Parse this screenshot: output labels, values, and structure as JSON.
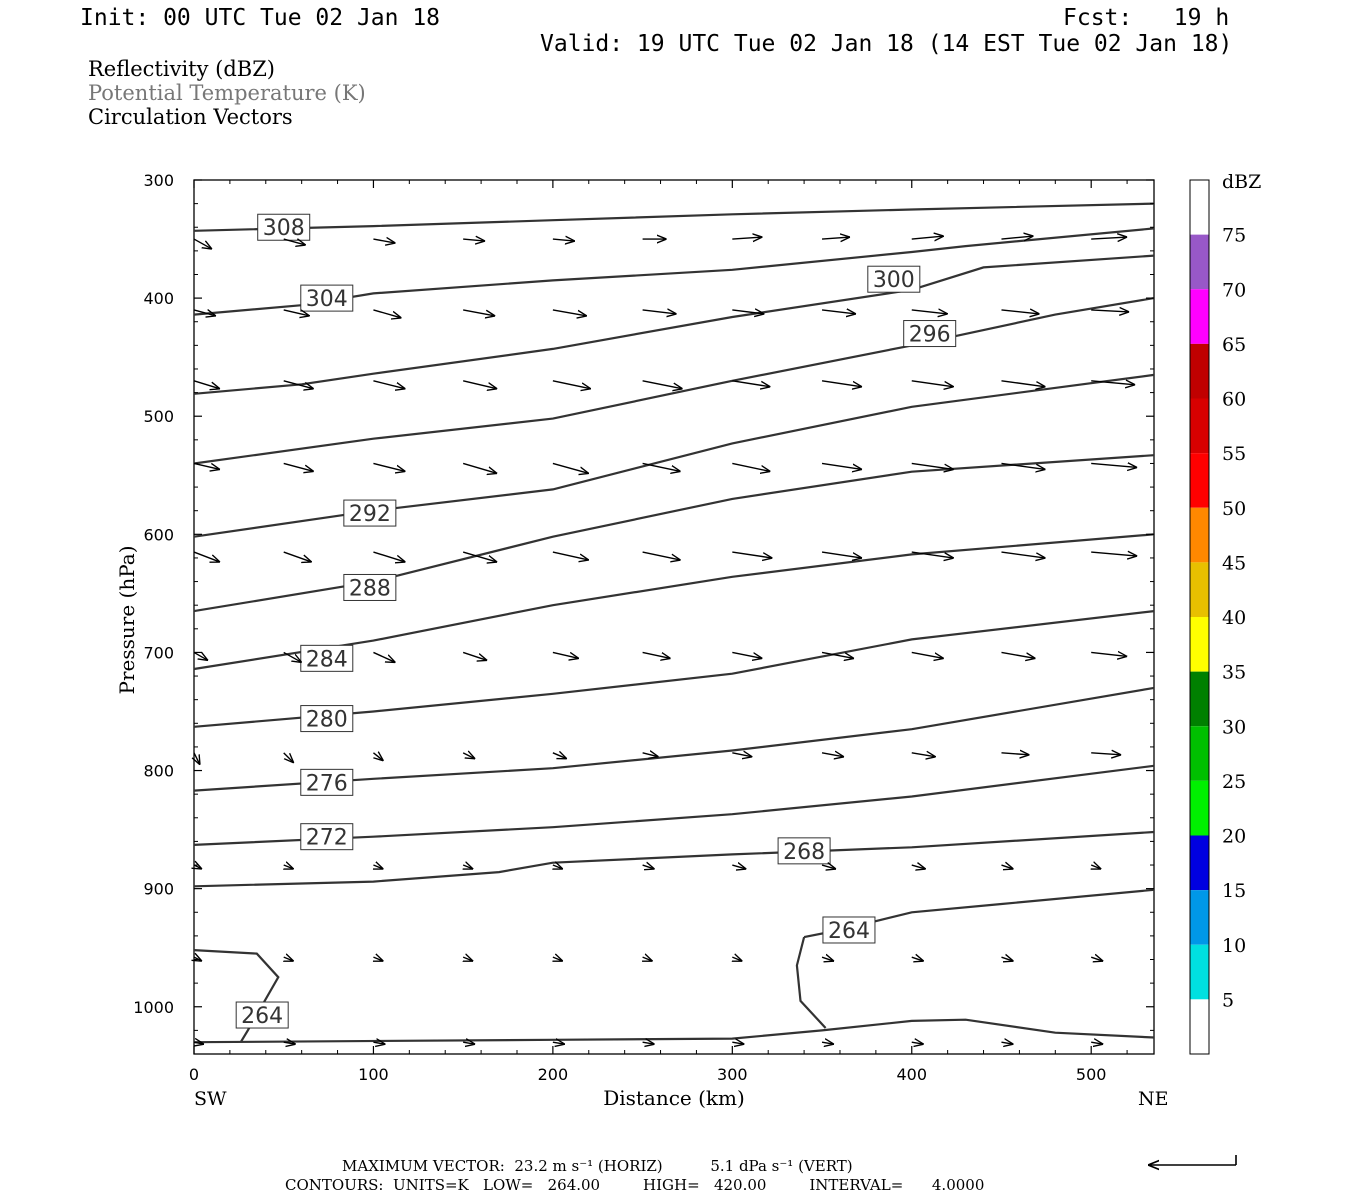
{
  "header": {
    "init": "Init: 00 UTC Tue 02 Jan 18",
    "fcst": "Fcst:   19 h",
    "valid": "Valid: 19 UTC Tue 02 Jan 18 (14 EST Tue 02 Jan 18)"
  },
  "fields": {
    "reflectivity": "Reflectivity (dBZ)",
    "theta": "Potential Temperature (K)",
    "vectors": "Circulation Vectors"
  },
  "footer": {
    "max_vector": "MAXIMUM VECTOR:  23.2 m s⁻¹ (HORIZ)          5.1 dPa s⁻¹ (VERT)",
    "contours": "CONTOURS:  UNITS=K   LOW=   264.00         HIGH=   420.00         INTERVAL=      4.0000"
  },
  "chart_data": {
    "type": "cross-section",
    "xlabel": "Distance (km)",
    "ylabel": "Pressure (hPa)",
    "xlim": [
      0,
      535
    ],
    "ylim": [
      1040,
      300
    ],
    "x_ticks": [
      0,
      100,
      200,
      300,
      400,
      500
    ],
    "y_ticks": [
      300,
      400,
      500,
      600,
      700,
      800,
      900,
      1000
    ],
    "x_end_labels": {
      "left": "SW",
      "right": "NE"
    },
    "colorbar": {
      "unit": "dBZ",
      "ticks": [
        5,
        10,
        15,
        20,
        25,
        30,
        35,
        40,
        45,
        50,
        55,
        60,
        65,
        70,
        75
      ],
      "colors": [
        "#00e0e0",
        "#0098e8",
        "#0000e0",
        "#00f000",
        "#00c000",
        "#008000",
        "#ffff00",
        "#e8c000",
        "#ff8800",
        "#ff0000",
        "#d80000",
        "#c00000",
        "#ff00ff",
        "#9858c8"
      ]
    },
    "theta_contours": [
      {
        "level": 308,
        "label_at": [
          50,
          340
        ],
        "points": [
          [
            0,
            343
          ],
          [
            100,
            339
          ],
          [
            200,
            334
          ],
          [
            300,
            329
          ],
          [
            400,
            325
          ],
          [
            535,
            320
          ]
        ]
      },
      {
        "level": 304,
        "label_at": [
          74,
          400
        ],
        "points": [
          [
            0,
            414
          ],
          [
            60,
            406
          ],
          [
            100,
            396
          ],
          [
            200,
            385
          ],
          [
            300,
            376
          ],
          [
            400,
            361
          ],
          [
            430,
            356
          ],
          [
            535,
            341
          ]
        ]
      },
      {
        "level": 300,
        "label_at": [
          390,
          384
        ],
        "points": [
          [
            0,
            481
          ],
          [
            60,
            473
          ],
          [
            100,
            464
          ],
          [
            200,
            443
          ],
          [
            300,
            416
          ],
          [
            400,
            393
          ],
          [
            440,
            374
          ],
          [
            535,
            364
          ]
        ]
      },
      {
        "level": 296,
        "label_at": [
          410,
          430
        ],
        "points": [
          [
            0,
            540
          ],
          [
            100,
            519
          ],
          [
            200,
            502
          ],
          [
            300,
            470
          ],
          [
            400,
            440
          ],
          [
            480,
            414
          ],
          [
            535,
            400
          ]
        ]
      },
      {
        "level": 292,
        "label_at": [
          98,
          582
        ],
        "points": [
          [
            0,
            602
          ],
          [
            100,
            580
          ],
          [
            200,
            562
          ],
          [
            300,
            523
          ],
          [
            400,
            492
          ],
          [
            535,
            465
          ]
        ]
      },
      {
        "level": 288,
        "label_at": [
          98,
          645
        ],
        "points": [
          [
            0,
            665
          ],
          [
            100,
            640
          ],
          [
            200,
            602
          ],
          [
            300,
            570
          ],
          [
            400,
            547
          ],
          [
            535,
            533
          ]
        ]
      },
      {
        "level": 284,
        "label_at": [
          74,
          705
        ],
        "points": [
          [
            0,
            714
          ],
          [
            100,
            690
          ],
          [
            200,
            660
          ],
          [
            300,
            636
          ],
          [
            400,
            617
          ],
          [
            535,
            600
          ]
        ]
      },
      {
        "level": 280,
        "label_at": [
          74,
          756
        ],
        "points": [
          [
            0,
            763
          ],
          [
            100,
            750
          ],
          [
            200,
            735
          ],
          [
            300,
            718
          ],
          [
            400,
            689
          ],
          [
            535,
            665
          ]
        ]
      },
      {
        "level": 276,
        "label_at": [
          74,
          810
        ],
        "points": [
          [
            0,
            817
          ],
          [
            100,
            807
          ],
          [
            200,
            798
          ],
          [
            300,
            783
          ],
          [
            400,
            765
          ],
          [
            535,
            730
          ]
        ]
      },
      {
        "level": 272,
        "label_at": [
          74,
          856
        ],
        "points": [
          [
            0,
            863
          ],
          [
            100,
            856
          ],
          [
            200,
            848
          ],
          [
            300,
            837
          ],
          [
            400,
            822
          ],
          [
            535,
            796
          ]
        ]
      },
      {
        "level": 268,
        "label_at": [
          340,
          868
        ],
        "points": [
          [
            0,
            898
          ],
          [
            100,
            894
          ],
          [
            170,
            886
          ],
          [
            200,
            878
          ],
          [
            300,
            871
          ],
          [
            400,
            865
          ],
          [
            535,
            852
          ]
        ]
      },
      {
        "level": 264,
        "label_at": [
          365,
          935
        ],
        "points": [
          [
            340,
            941
          ],
          [
            360,
            935
          ],
          [
            400,
            920
          ],
          [
            450,
            913
          ],
          [
            535,
            901
          ]
        ]
      }
    ],
    "vectors": [
      {
        "p": 350,
        "dx": [
          18,
          22,
          22,
          22,
          22,
          24,
          30,
          28,
          32,
          32,
          36
        ],
        "dy": [
          10,
          6,
          4,
          2,
          2,
          0,
          -2,
          -2,
          -3,
          -3,
          -2
        ]
      },
      {
        "p": 410,
        "dx": [
          22,
          26,
          28,
          32,
          34,
          34,
          32,
          34,
          36,
          38,
          38
        ],
        "dy": [
          6,
          6,
          8,
          6,
          6,
          4,
          4,
          4,
          4,
          4,
          2
        ]
      },
      {
        "p": 470,
        "dx": [
          26,
          30,
          32,
          34,
          38,
          40,
          38,
          40,
          42,
          44,
          44
        ],
        "dy": [
          8,
          8,
          8,
          8,
          8,
          8,
          6,
          6,
          6,
          6,
          4
        ]
      },
      {
        "p": 540,
        "dx": [
          26,
          30,
          32,
          34,
          36,
          38,
          38,
          40,
          42,
          44,
          46
        ],
        "dy": [
          6,
          8,
          8,
          10,
          10,
          8,
          8,
          6,
          6,
          6,
          4
        ]
      },
      {
        "p": 615,
        "dx": [
          26,
          28,
          32,
          34,
          36,
          38,
          40,
          40,
          42,
          44,
          46
        ],
        "dy": [
          10,
          10,
          10,
          10,
          8,
          8,
          6,
          6,
          6,
          6,
          4
        ]
      },
      {
        "p": 700,
        "dx": [
          14,
          18,
          22,
          24,
          26,
          28,
          30,
          32,
          32,
          34,
          36
        ],
        "dy": [
          8,
          10,
          10,
          8,
          6,
          6,
          6,
          6,
          6,
          6,
          4
        ]
      },
      {
        "p": 785,
        "dx": [
          6,
          10,
          10,
          12,
          14,
          16,
          20,
          22,
          24,
          28,
          30
        ],
        "dy": [
          12,
          10,
          8,
          6,
          6,
          4,
          4,
          4,
          4,
          2,
          2
        ]
      },
      {
        "p": 880,
        "dx": [
          8,
          10,
          10,
          10,
          10,
          12,
          14,
          14,
          14,
          12,
          10
        ],
        "dy": [
          4,
          4,
          4,
          4,
          4,
          4,
          4,
          4,
          4,
          4,
          4
        ]
      },
      {
        "p": 958,
        "dx": [
          8,
          10,
          10,
          10,
          10,
          10,
          10,
          12,
          12,
          12,
          12
        ],
        "dy": [
          4,
          4,
          4,
          4,
          4,
          4,
          4,
          4,
          4,
          4,
          4
        ]
      },
      {
        "p": 1030,
        "dx": [
          10,
          12,
          12,
          12,
          12,
          12,
          12,
          12,
          12,
          12,
          12
        ],
        "dy": [
          2,
          2,
          2,
          2,
          2,
          2,
          2,
          2,
          2,
          2,
          2
        ]
      }
    ],
    "vector_x": [
      0,
      50,
      100,
      150,
      200,
      250,
      300,
      350,
      400,
      450,
      500
    ]
  }
}
